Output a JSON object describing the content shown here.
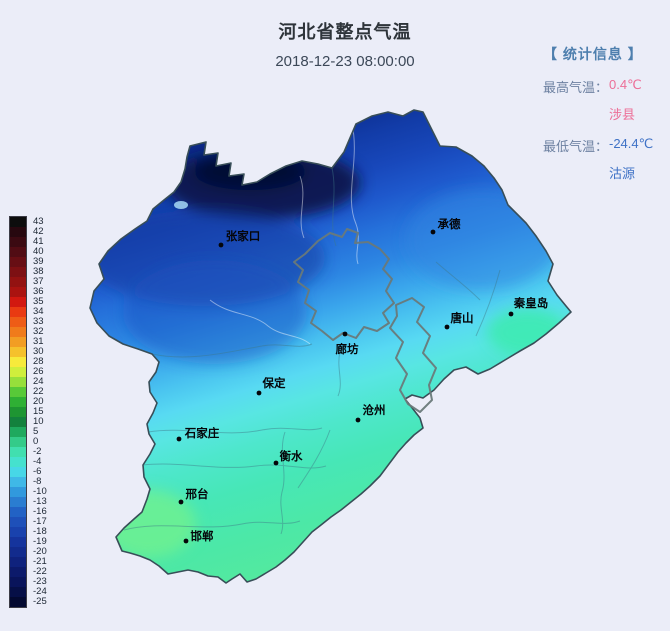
{
  "header": {
    "title": "河北省整点气温",
    "datetime": "2018-12-23 08:00:00"
  },
  "stats": {
    "panel_title": "【 统计信息 】",
    "max": {
      "label": "最高气温：",
      "value": "0.4℃",
      "station": "涉县"
    },
    "min": {
      "label": "最低气温：",
      "value": "-24.4℃",
      "station": "沽源"
    },
    "colors": {
      "max": "#ec6e97",
      "min": "#3f72c6",
      "panel_title": "#4e7fae",
      "label": "#6d81a1"
    }
  },
  "colorbar": {
    "unit": "°C",
    "entries": [
      {
        "v": "43",
        "c": "#0d0d0d"
      },
      {
        "v": "42",
        "c": "#27080f"
      },
      {
        "v": "41",
        "c": "#3b0a12"
      },
      {
        "v": "40",
        "c": "#510c14"
      },
      {
        "v": "39",
        "c": "#670e14"
      },
      {
        "v": "38",
        "c": "#7d1013"
      },
      {
        "v": "37",
        "c": "#931211"
      },
      {
        "v": "36",
        "c": "#aa1310"
      },
      {
        "v": "35",
        "c": "#d21810"
      },
      {
        "v": "34",
        "c": "#e93a12"
      },
      {
        "v": "33",
        "c": "#ee5c16"
      },
      {
        "v": "32",
        "c": "#f07b1b"
      },
      {
        "v": "31",
        "c": "#f29d23"
      },
      {
        "v": "30",
        "c": "#f5c12c"
      },
      {
        "v": "28",
        "c": "#f7ea3b"
      },
      {
        "v": "26",
        "c": "#cfee3c"
      },
      {
        "v": "24",
        "c": "#97df3b"
      },
      {
        "v": "22",
        "c": "#58c938"
      },
      {
        "v": "20",
        "c": "#2fb034"
      },
      {
        "v": "15",
        "c": "#1e9532"
      },
      {
        "v": "10",
        "c": "#13813d"
      },
      {
        "v": "5",
        "c": "#1fa95e"
      },
      {
        "v": "0",
        "c": "#34cb89"
      },
      {
        "v": "-2",
        "c": "#41dfaf"
      },
      {
        "v": "-4",
        "c": "#45e1ce"
      },
      {
        "v": "-6",
        "c": "#47d7e7"
      },
      {
        "v": "-8",
        "c": "#3fb8e7"
      },
      {
        "v": "-10",
        "c": "#3199dd"
      },
      {
        "v": "-13",
        "c": "#2a7dd1"
      },
      {
        "v": "-16",
        "c": "#2262c5"
      },
      {
        "v": "-17",
        "c": "#1e50b9"
      },
      {
        "v": "-18",
        "c": "#1942ad"
      },
      {
        "v": "-19",
        "c": "#15349d"
      },
      {
        "v": "-20",
        "c": "#122b8d"
      },
      {
        "v": "-21",
        "c": "#0f227d"
      },
      {
        "v": "-22",
        "c": "#0c1a6b"
      },
      {
        "v": "-23",
        "c": "#09145b"
      },
      {
        "v": "-24",
        "c": "#060f47"
      },
      {
        "v": "-25",
        "c": "#030931"
      }
    ]
  },
  "map": {
    "province": "河北省",
    "cities": [
      {
        "name": "张家口",
        "dot": [
          221,
          245
        ],
        "label": [
          243,
          236
        ]
      },
      {
        "name": "承德",
        "dot": [
          433,
          232
        ],
        "label": [
          449,
          224
        ]
      },
      {
        "name": "秦皇岛",
        "dot": [
          511,
          314
        ],
        "label": [
          531,
          303
        ]
      },
      {
        "name": "唐山",
        "dot": [
          447,
          327
        ],
        "label": [
          462,
          318
        ]
      },
      {
        "name": "廊坊",
        "dot": [
          345,
          334
        ],
        "label": [
          347,
          349
        ]
      },
      {
        "name": "保定",
        "dot": [
          259,
          393
        ],
        "label": [
          274,
          383
        ]
      },
      {
        "name": "沧州",
        "dot": [
          358,
          420
        ],
        "label": [
          374,
          410
        ]
      },
      {
        "name": "石家庄",
        "dot": [
          179,
          439
        ],
        "label": [
          202,
          433
        ]
      },
      {
        "name": "衡水",
        "dot": [
          276,
          463
        ],
        "label": [
          291,
          456
        ]
      },
      {
        "name": "邢台",
        "dot": [
          181,
          502
        ],
        "label": [
          197,
          494
        ]
      },
      {
        "name": "邯郸",
        "dot": [
          186,
          541
        ],
        "label": [
          202,
          536
        ]
      }
    ],
    "colors": {
      "background": "#ebedf8",
      "coldest": "#030931",
      "warmest_on_map": "#58ea9a",
      "boundary": "#384e58",
      "bj_tj_boundary": "#6a7a7a"
    }
  }
}
